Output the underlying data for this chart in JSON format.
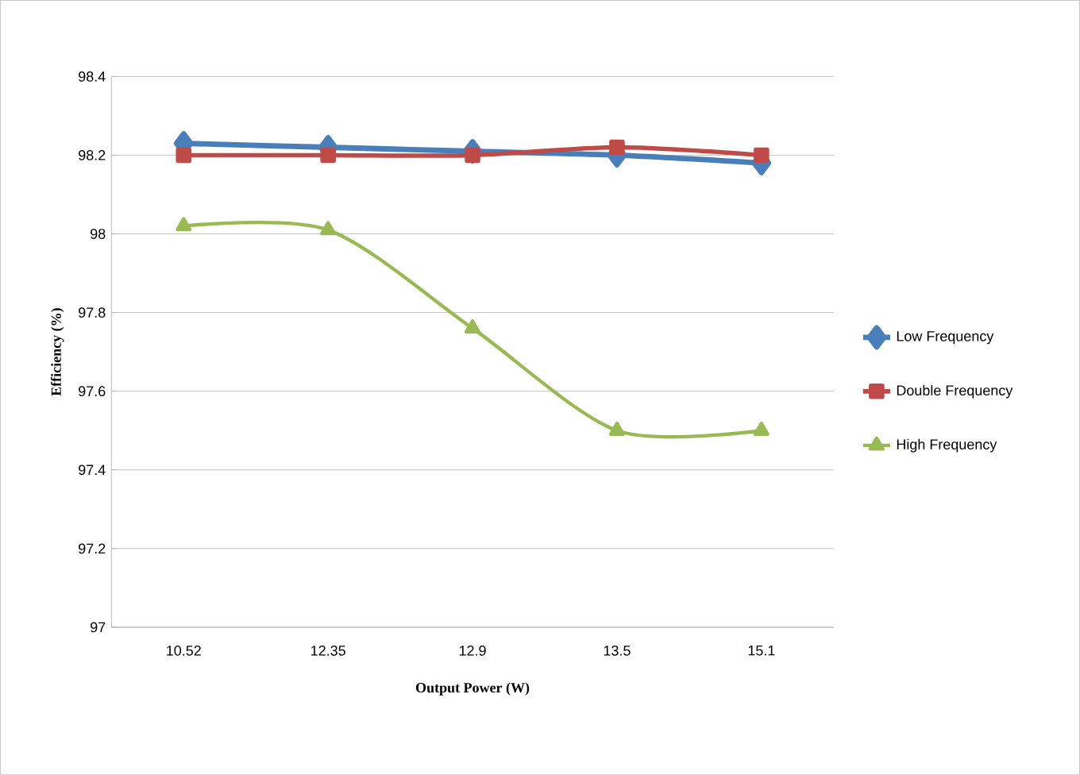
{
  "chart_data": {
    "type": "line",
    "xlabel": "Output Power (W)",
    "ylabel": "Efficiency (%)",
    "categories": [
      "10.52",
      "12.35",
      "12.9",
      "13.5",
      "15.1"
    ],
    "series": [
      {
        "name": "Low Frequency",
        "color": "#4a7ebb",
        "marker": "diamond",
        "values": [
          98.23,
          98.22,
          98.21,
          98.2,
          98.18
        ]
      },
      {
        "name": "Double Frequency",
        "color": "#be4b48",
        "marker": "square",
        "values": [
          98.2,
          98.2,
          98.2,
          98.22,
          98.2
        ]
      },
      {
        "name": "High Frequency",
        "color": "#98b954",
        "marker": "triangle",
        "values": [
          98.02,
          98.01,
          97.76,
          97.5,
          97.5
        ]
      }
    ],
    "ylim": [
      97,
      98.4
    ],
    "yticks": [
      97,
      97.2,
      97.4,
      97.6,
      97.8,
      98,
      98.2,
      98.4
    ],
    "grid": "y",
    "legend": "right",
    "line_style": "solid"
  }
}
